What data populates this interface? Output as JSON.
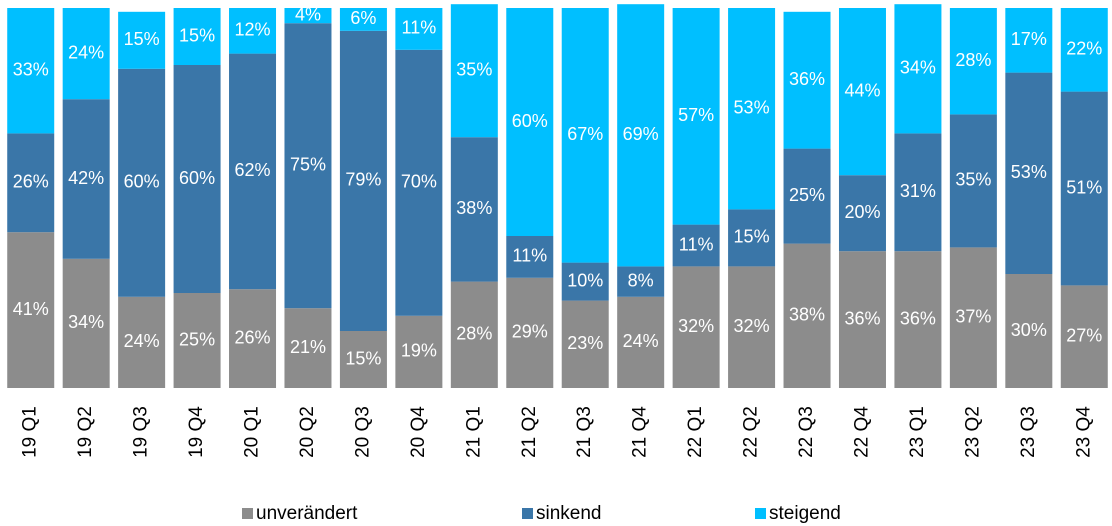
{
  "chart_data": {
    "type": "stacked_bar",
    "categories": [
      "19 Q1",
      "19 Q2",
      "19 Q3",
      "19 Q4",
      "20 Q1",
      "20 Q2",
      "20 Q3",
      "20 Q4",
      "21 Q1",
      "21 Q2",
      "21 Q3",
      "21 Q4",
      "22 Q1",
      "22 Q2",
      "22 Q3",
      "22 Q4",
      "23 Q1",
      "23 Q2",
      "23 Q3",
      "23 Q4"
    ],
    "ylim": [
      0,
      100
    ],
    "legend": "bottom",
    "series": [
      {
        "name": "unverändert",
        "color": "#8c8c8c",
        "values": [
          41,
          34,
          24,
          25,
          26,
          21,
          15,
          19,
          28,
          29,
          23,
          24,
          32,
          32,
          38,
          36,
          36,
          37,
          30,
          27
        ],
        "value_labels": [
          "41%",
          "34%",
          "24%",
          "25%",
          "26%",
          "21%",
          "15%",
          "19%",
          "28%",
          "29%",
          "23%",
          "24%",
          "32%",
          "32%",
          "38%",
          "36%",
          "36%",
          "37%",
          "30%",
          "27%"
        ]
      },
      {
        "name": "sinkend",
        "color": "#3a76a8",
        "values": [
          26,
          42,
          60,
          60,
          62,
          75,
          79,
          70,
          38,
          11,
          10,
          8,
          11,
          15,
          25,
          20,
          31,
          35,
          53,
          51
        ],
        "value_labels": [
          "26%",
          "42%",
          "60%",
          "60%",
          "62%",
          "75%",
          "79%",
          "70%",
          "38%",
          "11%",
          "10%",
          "8%",
          "11%",
          "15%",
          "25%",
          "20%",
          "31%",
          "35%",
          "53%",
          "51%"
        ]
      },
      {
        "name": "steigend",
        "color": "#00bfff",
        "values": [
          33,
          24,
          15,
          15,
          12,
          4,
          6,
          11,
          35,
          60,
          67,
          69,
          57,
          53,
          36,
          44,
          34,
          28,
          17,
          22
        ],
        "value_labels": [
          "33%",
          "24%",
          "15%",
          "15%",
          "12%",
          "4%",
          "6%",
          "11%",
          "35%",
          "60%",
          "67%",
          "69%",
          "57%",
          "53%",
          "36%",
          "44%",
          "34%",
          "28%",
          "17%",
          "22%"
        ]
      }
    ]
  }
}
